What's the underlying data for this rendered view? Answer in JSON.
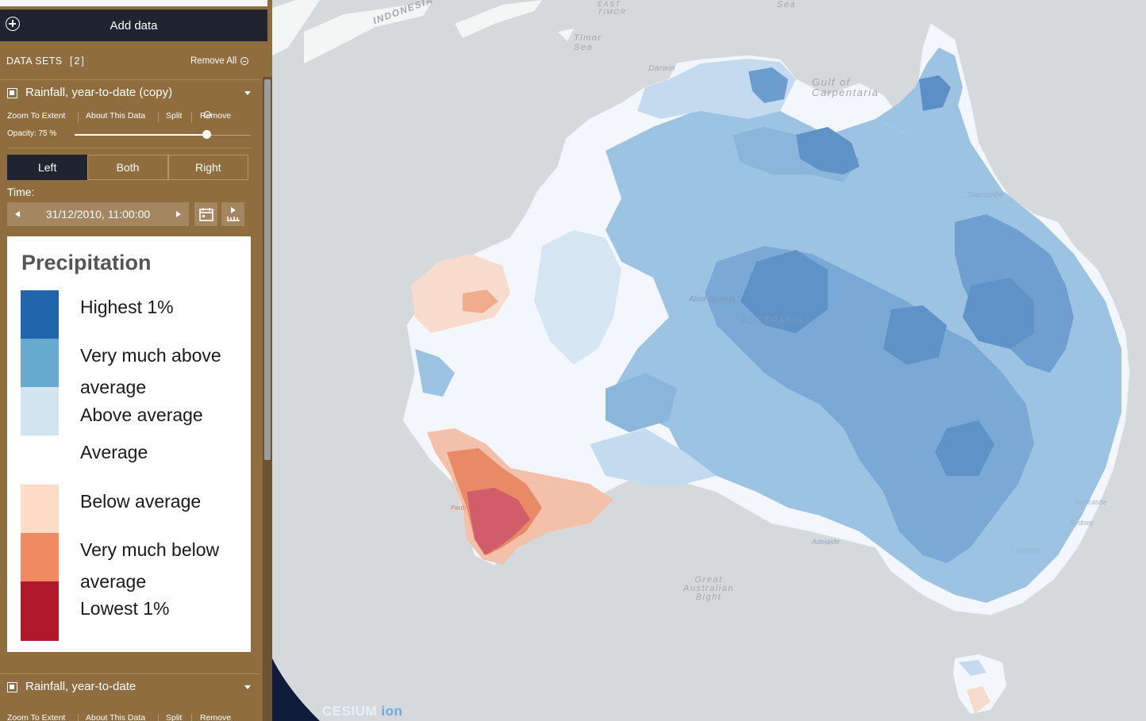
{
  "panel": {
    "add_data_label": "Add data",
    "datasets_title": "DATA SETS",
    "datasets_count": "[2]",
    "remove_all_label": "Remove All",
    "items": [
      {
        "name": "Rainfall, year-to-date (copy)",
        "actions": [
          "Zoom To Extent",
          "About This Data",
          "Split",
          "Remove"
        ],
        "opacity_label": "Opacity: 75 %",
        "opacity_value": 0.75,
        "split_options": [
          "Left",
          "Both",
          "Right"
        ],
        "split_selected": "Left",
        "time_label": "Time:",
        "time_value": "31/12/2010, 11:00:00",
        "legend": {
          "title": "Precipitation",
          "entries": [
            {
              "label": "Highest 1%",
              "color": "#2166ac"
            },
            {
              "label": "Very much above average",
              "color": "#67a9cf"
            },
            {
              "label": "Above average",
              "color": "#d1e5f0"
            },
            {
              "label": "Average",
              "color": "#ffffff"
            },
            {
              "label": "Below average",
              "color": "#fddbc7"
            },
            {
              "label": "Very much below average",
              "color": "#ef8a62"
            },
            {
              "label": "Lowest 1%",
              "color": "#b2182b"
            }
          ]
        }
      },
      {
        "name": "Rainfall, year-to-date",
        "actions": [
          "Zoom To Extent",
          "About This Data",
          "Split",
          "Remove"
        ]
      }
    ]
  },
  "map": {
    "labels": {
      "darwin": "Darwin",
      "gulf": "Gulf of Carpentaria",
      "timor_sea": "Timor Sea",
      "east_timor": "EAST TIMOR",
      "indonesia": "INDONESIA",
      "australia": "AUSTRALIA",
      "alice_springs": "Alice Springs",
      "townsville": "Townsville",
      "perth": "Perth",
      "adelaide": "Adelaide",
      "newcastle": "Newcastle",
      "sydney": "Sydney",
      "canberra": "Canberra",
      "great_australian_bight": "Great Australian Bight",
      "sea": "Sea"
    },
    "attribution": {
      "cesium": "CESIUM",
      "ion": "ion"
    }
  }
}
